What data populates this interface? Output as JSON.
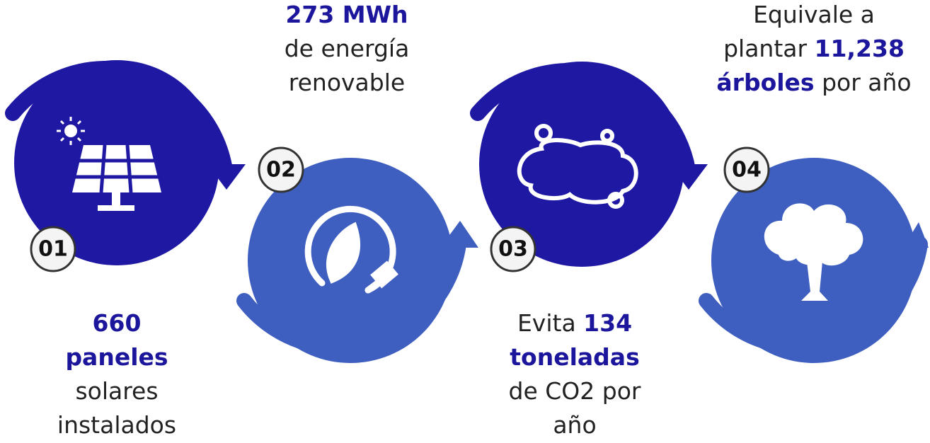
{
  "steps": [
    {
      "number": "01",
      "lines": [
        [
          {
            "text": "660",
            "bold": true
          }
        ],
        [
          {
            "text": "paneles",
            "bold": true
          }
        ],
        [
          {
            "text": "solares",
            "bold": false
          }
        ],
        [
          {
            "text": "instalados",
            "bold": false
          }
        ]
      ]
    },
    {
      "number": "02",
      "lines": [
        [
          {
            "text": "273 MWh",
            "bold": true
          }
        ],
        [
          {
            "text": "de energía",
            "bold": false
          }
        ],
        [
          {
            "text": "renovable",
            "bold": false
          }
        ]
      ]
    },
    {
      "number": "03",
      "lines": [
        [
          {
            "text": "Evita ",
            "bold": false
          },
          {
            "text": "134",
            "bold": true
          }
        ],
        [
          {
            "text": "toneladas",
            "bold": true
          }
        ],
        [
          {
            "text": "de CO2 por",
            "bold": false
          }
        ],
        [
          {
            "text": "año",
            "bold": false
          }
        ]
      ]
    },
    {
      "number": "04",
      "lines": [
        [
          {
            "text": "Equivale a",
            "bold": false
          }
        ],
        [
          {
            "text": "plantar ",
            "bold": false
          },
          {
            "text": "11,238",
            "bold": true
          }
        ],
        [
          {
            "text": "árboles",
            "bold": true
          },
          {
            "text": " por año",
            "bold": false
          }
        ]
      ]
    }
  ]
}
